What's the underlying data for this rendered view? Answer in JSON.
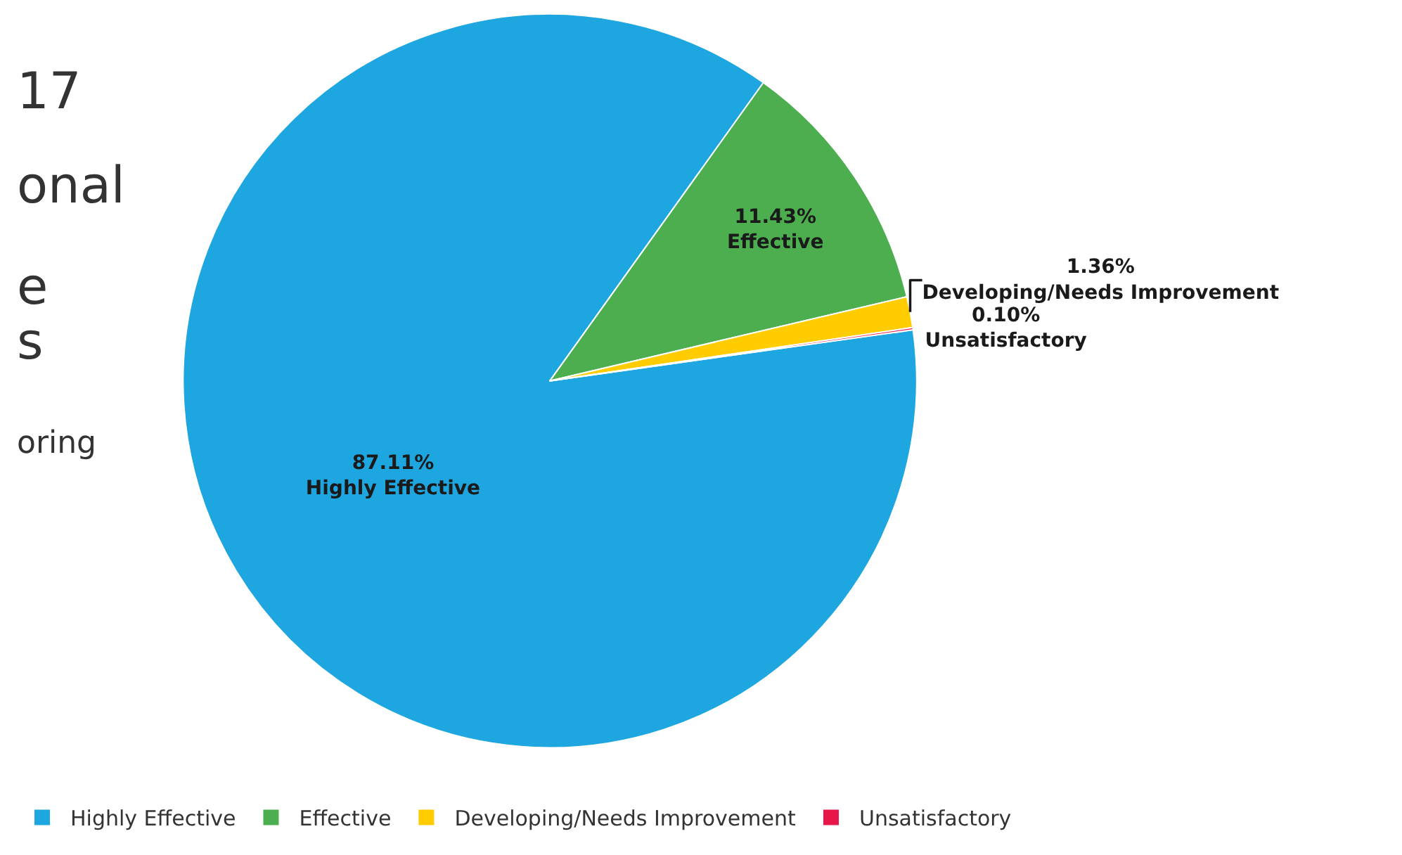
{
  "chart_data": {
    "type": "pie",
    "categories": [
      "Highly Effective",
      "Effective",
      "Developing/Needs Improvement",
      "Unsatisfactory"
    ],
    "values": [
      87.11,
      11.43,
      1.36,
      0.1
    ],
    "value_labels": [
      "87.11%",
      "11.43%",
      "1.36%",
      "0.10%"
    ],
    "colors": [
      "#1ea6e0",
      "#4cae4f",
      "#ffcc00",
      "#e8174a"
    ],
    "legend": "bottom",
    "annotations": [
      "17",
      "onal",
      "e",
      "s",
      "oring"
    ]
  }
}
